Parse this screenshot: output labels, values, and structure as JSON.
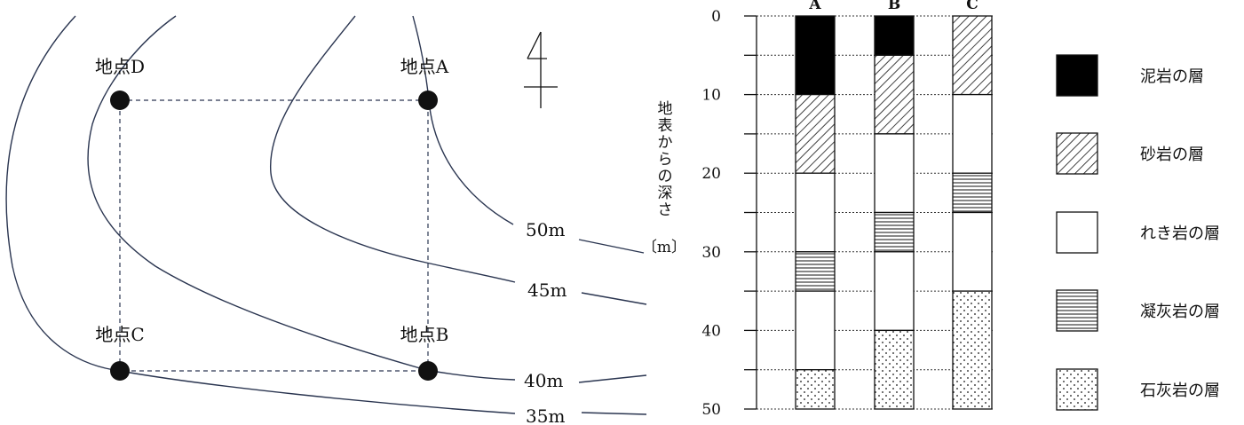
{
  "map": {
    "points": [
      {
        "id": "D",
        "label": "地点D"
      },
      {
        "id": "A",
        "label": "地点A"
      },
      {
        "id": "C",
        "label": "地点C"
      },
      {
        "id": "B",
        "label": "地点B"
      }
    ],
    "north_symbol": "north-arrow-icon",
    "contours": [
      "50m",
      "45m",
      "40m",
      "35m"
    ]
  },
  "chart_data": {
    "type": "table",
    "ylabel": "地表からの深さ",
    "yunit": "〔m〕",
    "ylim": [
      0,
      50
    ],
    "y_ticks": [
      0,
      10,
      20,
      30,
      40,
      50
    ],
    "columns": [
      {
        "name": "A",
        "layers": [
          {
            "type": "mudstone",
            "from": 0,
            "to": 10
          },
          {
            "type": "sandstone",
            "from": 10,
            "to": 20
          },
          {
            "type": "conglomerate",
            "from": 20,
            "to": 30
          },
          {
            "type": "tuff",
            "from": 30,
            "to": 35
          },
          {
            "type": "conglomerate",
            "from": 35,
            "to": 45
          },
          {
            "type": "limestone",
            "from": 45,
            "to": 50
          }
        ]
      },
      {
        "name": "B",
        "layers": [
          {
            "type": "mudstone",
            "from": 0,
            "to": 5
          },
          {
            "type": "sandstone",
            "from": 5,
            "to": 15
          },
          {
            "type": "conglomerate",
            "from": 15,
            "to": 25
          },
          {
            "type": "tuff",
            "from": 25,
            "to": 30
          },
          {
            "type": "conglomerate",
            "from": 30,
            "to": 40
          },
          {
            "type": "limestone",
            "from": 40,
            "to": 50
          }
        ]
      },
      {
        "name": "C",
        "layers": [
          {
            "type": "sandstone",
            "from": 0,
            "to": 10
          },
          {
            "type": "conglomerate",
            "from": 10,
            "to": 20
          },
          {
            "type": "tuff",
            "from": 20,
            "to": 25
          },
          {
            "type": "conglomerate",
            "from": 25,
            "to": 35
          },
          {
            "type": "limestone",
            "from": 35,
            "to": 50
          }
        ]
      }
    ],
    "legend": [
      {
        "type": "mudstone",
        "label": "泥岩の層"
      },
      {
        "type": "sandstone",
        "label": "砂岩の層"
      },
      {
        "type": "conglomerate",
        "label": "れき岩の層"
      },
      {
        "type": "tuff",
        "label": "凝灰岩の層"
      },
      {
        "type": "limestone",
        "label": "石灰岩の層"
      }
    ]
  }
}
